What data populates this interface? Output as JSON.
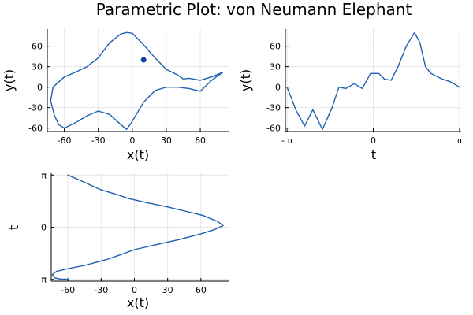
{
  "figure": {
    "title": "Parametric Plot: von Neumann Elephant"
  },
  "colors": {
    "line": "#1f5fb0",
    "point": "#0d47a1",
    "grid": "#e6e6e6",
    "axis": "#000000"
  },
  "chart_data": [
    {
      "type": "line",
      "subplot": "x-vs-y",
      "xlabel": "x(t)",
      "ylabel": "y(t)",
      "xlim": [
        -75,
        85
      ],
      "ylim": [
        -65,
        85
      ],
      "x_ticks": [
        -60,
        -30,
        0,
        30,
        60
      ],
      "y_ticks": [
        -60,
        -30,
        0,
        30,
        60
      ],
      "x_tick_labels": [
        "-60",
        "-30",
        "0",
        "30",
        "60"
      ],
      "y_tick_labels": [
        "-60",
        "-30",
        "0",
        "30",
        "60"
      ],
      "grid": true,
      "series": [
        {
          "x": [
            -60,
            -50,
            -40,
            -30,
            -20,
            -10,
            -5,
            0,
            10,
            20,
            30,
            40,
            50,
            60,
            70,
            80,
            70,
            60,
            50,
            45,
            40,
            30,
            20,
            10,
            0,
            -5,
            -10,
            -20,
            -30,
            -40,
            -50,
            -60,
            -70,
            -72,
            -69,
            -65,
            -60
          ],
          "y": [
            -60,
            -52,
            -42,
            -35,
            -40,
            -55,
            -62,
            -50,
            -22,
            -5,
            0,
            0,
            -2,
            -6,
            10,
            22,
            15,
            10,
            13,
            12,
            18,
            26,
            43,
            62,
            79,
            80,
            78,
            65,
            43,
            30,
            22,
            15,
            0,
            -20,
            -40,
            -55,
            -60
          ]
        }
      ],
      "points": [
        {
          "x": 10,
          "y": 40
        }
      ]
    },
    {
      "type": "line",
      "subplot": "t-vs-y",
      "xlabel": "t",
      "ylabel": "y(t)",
      "xlim": [
        -3.2,
        3.2
      ],
      "ylim": [
        -65,
        85
      ],
      "x_ticks": [
        -3.14159,
        0,
        3.14159
      ],
      "y_ticks": [
        -60,
        -30,
        0,
        30,
        60
      ],
      "x_tick_labels": [
        "- π",
        "0",
        "π"
      ],
      "y_tick_labels": [
        "-60",
        "-30",
        "0",
        "30",
        "60"
      ],
      "grid": true,
      "series": [
        {
          "x": [
            -3.14,
            -2.8,
            -2.5,
            -2.2,
            -1.85,
            -1.5,
            -1.25,
            -1.0,
            -0.7,
            -0.4,
            -0.1,
            0.2,
            0.4,
            0.65,
            0.9,
            1.2,
            1.5,
            1.7,
            1.9,
            2.1,
            2.5,
            2.8,
            3.14
          ],
          "y": [
            0,
            -35,
            -57,
            -33,
            -62,
            -30,
            0,
            -2,
            5,
            -2,
            20,
            20,
            12,
            10,
            30,
            60,
            80,
            65,
            30,
            20,
            12,
            8,
            0
          ]
        }
      ]
    },
    {
      "type": "line",
      "subplot": "x-vs-t",
      "xlabel": "x(t)",
      "ylabel": "t",
      "xlim": [
        -75,
        85
      ],
      "ylim": [
        -3.25,
        3.25
      ],
      "x_ticks": [
        -60,
        -30,
        0,
        30,
        60
      ],
      "y_ticks": [
        -3.14159,
        0,
        3.14159
      ],
      "x_tick_labels": [
        "-60",
        "-30",
        "0",
        "30",
        "60"
      ],
      "y_tick_labels": [
        "- π",
        "0",
        "π"
      ],
      "grid": true,
      "series": [
        {
          "x": [
            -60,
            -50,
            -40,
            -30,
            -15,
            -5,
            10,
            30,
            50,
            62,
            75,
            80,
            72,
            60,
            40,
            20,
            0,
            -10,
            -25,
            -45,
            -60,
            -70,
            -74,
            -72,
            -67,
            -60
          ],
          "y": [
            3.14,
            2.85,
            2.55,
            2.25,
            1.95,
            1.72,
            1.5,
            1.22,
            0.9,
            0.7,
            0.35,
            0.1,
            -0.15,
            -0.4,
            -0.75,
            -1.05,
            -1.35,
            -1.6,
            -1.95,
            -2.3,
            -2.5,
            -2.65,
            -2.85,
            -3.05,
            -3.12,
            -3.14
          ]
        }
      ]
    }
  ]
}
